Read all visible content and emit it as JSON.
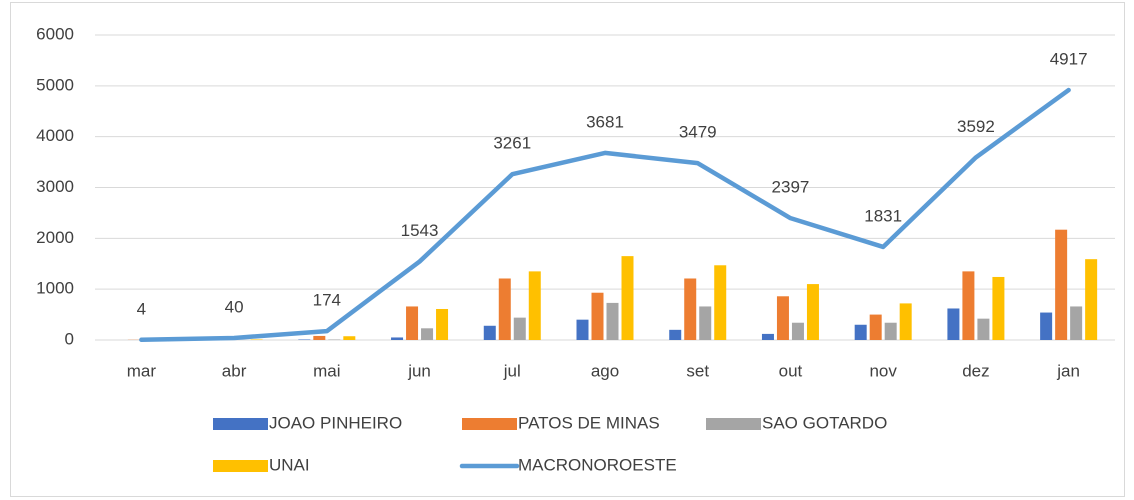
{
  "chart_data": {
    "type": "bar_line",
    "categories": [
      "mar",
      "abr",
      "mai",
      "jun",
      "jul",
      "ago",
      "set",
      "out",
      "nov",
      "dez",
      "jan"
    ],
    "series": [
      {
        "name": "JOAO PINHEIRO",
        "type": "bar",
        "color": "#4472c4",
        "values": [
          0,
          0,
          10,
          50,
          280,
          400,
          200,
          120,
          300,
          620,
          540
        ]
      },
      {
        "name": "PATOS DE MINAS",
        "type": "bar",
        "color": "#ed7d31",
        "values": [
          4,
          30,
          80,
          660,
          1210,
          930,
          1210,
          860,
          500,
          1350,
          2170
        ]
      },
      {
        "name": "SAO GOTARDO",
        "type": "bar",
        "color": "#a5a5a5",
        "values": [
          0,
          0,
          10,
          230,
          440,
          730,
          660,
          340,
          340,
          420,
          660
        ]
      },
      {
        "name": "UNAI",
        "type": "bar",
        "color": "#ffc000",
        "values": [
          0,
          10,
          74,
          610,
          1350,
          1650,
          1470,
          1100,
          720,
          1240,
          1590
        ]
      },
      {
        "name": "MACRONOROESTE",
        "type": "line",
        "color": "#5b9bd5",
        "values": [
          4,
          40,
          174,
          1543,
          3261,
          3681,
          3479,
          2397,
          1831,
          3592,
          4917
        ]
      }
    ],
    "ylim": [
      0,
      6000
    ],
    "yticks": [
      0,
      1000,
      2000,
      3000,
      4000,
      5000,
      6000
    ],
    "grid": true,
    "legend": "bottom"
  }
}
